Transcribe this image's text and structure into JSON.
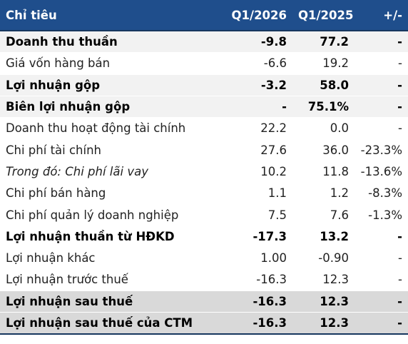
{
  "table": {
    "header": [
      "Chỉ tiêu",
      "Q1/2026",
      "Q1/2025",
      "+/-"
    ],
    "rows": [
      [
        "Doanh thu thuần",
        "-9.8",
        "77.2",
        "-"
      ],
      [
        "Giá vốn hàng bán",
        "-6.6",
        "19.2",
        "-"
      ],
      [
        "Lợi nhuận gộp",
        "-3.2",
        "58.0",
        "-"
      ],
      [
        "Biên lợi nhuận gộp",
        "-",
        "75.1%",
        "-"
      ],
      [
        "Doanh thu hoạt động tài chính",
        "22.2",
        "0.0",
        "-"
      ],
      [
        "Chi phí tài chính",
        "27.6",
        "36.0",
        "-23.3%"
      ],
      [
        "Trong đó: Chi phí lãi vay",
        "10.2",
        "11.8",
        "-13.6%"
      ],
      [
        "Chi phí bán hàng",
        "1.1",
        "1.2",
        "-8.3%"
      ],
      [
        "Chi phí quản lý doanh nghiệp",
        "7.5",
        "7.6",
        "-1.3%"
      ],
      [
        "Lợi nhuận thuần từ HĐKD",
        "-17.3",
        "13.2",
        "-"
      ],
      [
        "Lợi nhuận khác",
        "1.00",
        "-0.90",
        "-"
      ],
      [
        "Lợi nhuận trước thuế",
        "-16.3",
        "12.3",
        "-"
      ],
      [
        "Lợi nhuận sau thuế",
        "-16.3",
        "12.3",
        "-"
      ],
      [
        "Lợi nhuận sau thuế của CTM",
        "-16.3",
        "12.3",
        "-"
      ]
    ]
  }
}
